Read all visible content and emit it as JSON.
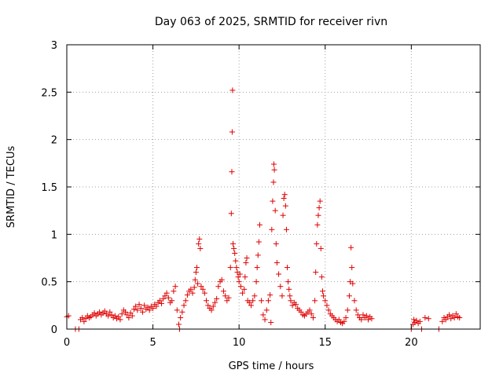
{
  "chart_data": {
    "type": "scatter",
    "title": "Day 063 of 2025, SRMTID for receiver rivn",
    "xlabel": "GPS time / hours",
    "ylabel": "SRMTID / TECUs",
    "xlim": [
      0,
      24
    ],
    "ylim": [
      0,
      3
    ],
    "xticks": [
      0,
      5,
      10,
      15,
      20
    ],
    "yticks": [
      0,
      0.5,
      1,
      1.5,
      2,
      2.5,
      3
    ],
    "grid": true,
    "marker": "plus",
    "color": "#e00000",
    "series": [
      {
        "name": "SRMTID",
        "points": [
          [
            0.0,
            0.13
          ],
          [
            0.1,
            0.14
          ],
          [
            0.5,
            0.0
          ],
          [
            0.7,
            0.0
          ],
          [
            0.8,
            0.1
          ],
          [
            0.9,
            0.12
          ],
          [
            1.0,
            0.08
          ],
          [
            1.1,
            0.11
          ],
          [
            1.2,
            0.14
          ],
          [
            1.3,
            0.12
          ],
          [
            1.4,
            0.13
          ],
          [
            1.5,
            0.15
          ],
          [
            1.6,
            0.17
          ],
          [
            1.7,
            0.14
          ],
          [
            1.8,
            0.16
          ],
          [
            1.9,
            0.18
          ],
          [
            2.0,
            0.15
          ],
          [
            2.1,
            0.17
          ],
          [
            2.2,
            0.19
          ],
          [
            2.3,
            0.16
          ],
          [
            2.4,
            0.14
          ],
          [
            2.5,
            0.18
          ],
          [
            2.6,
            0.15
          ],
          [
            2.7,
            0.12
          ],
          [
            2.8,
            0.14
          ],
          [
            2.9,
            0.11
          ],
          [
            3.0,
            0.13
          ],
          [
            3.1,
            0.1
          ],
          [
            3.2,
            0.16
          ],
          [
            3.3,
            0.2
          ],
          [
            3.4,
            0.18
          ],
          [
            3.5,
            0.15
          ],
          [
            3.6,
            0.12
          ],
          [
            3.7,
            0.17
          ],
          [
            3.8,
            0.14
          ],
          [
            3.9,
            0.21
          ],
          [
            4.0,
            0.24
          ],
          [
            4.1,
            0.2
          ],
          [
            4.2,
            0.26
          ],
          [
            4.3,
            0.22
          ],
          [
            4.4,
            0.18
          ],
          [
            4.5,
            0.25
          ],
          [
            4.6,
            0.21
          ],
          [
            4.7,
            0.23
          ],
          [
            4.8,
            0.2
          ],
          [
            4.9,
            0.24
          ],
          [
            5.0,
            0.22
          ],
          [
            5.1,
            0.26
          ],
          [
            5.2,
            0.24
          ],
          [
            5.3,
            0.28
          ],
          [
            5.4,
            0.3
          ],
          [
            5.5,
            0.27
          ],
          [
            5.6,
            0.32
          ],
          [
            5.7,
            0.35
          ],
          [
            5.8,
            0.38
          ],
          [
            5.9,
            0.33
          ],
          [
            6.0,
            0.28
          ],
          [
            6.1,
            0.3
          ],
          [
            6.2,
            0.4
          ],
          [
            6.3,
            0.45
          ],
          [
            6.4,
            0.2
          ],
          [
            6.5,
            0.05
          ],
          [
            6.55,
            0.0
          ],
          [
            6.6,
            0.12
          ],
          [
            6.7,
            0.18
          ],
          [
            6.8,
            0.25
          ],
          [
            6.9,
            0.3
          ],
          [
            7.0,
            0.36
          ],
          [
            7.1,
            0.4
          ],
          [
            7.2,
            0.42
          ],
          [
            7.3,
            0.38
          ],
          [
            7.4,
            0.44
          ],
          [
            7.45,
            0.52
          ],
          [
            7.5,
            0.6
          ],
          [
            7.55,
            0.65
          ],
          [
            7.6,
            0.48
          ],
          [
            7.65,
            0.9
          ],
          [
            7.7,
            0.95
          ],
          [
            7.75,
            0.85
          ],
          [
            7.8,
            0.45
          ],
          [
            7.9,
            0.42
          ],
          [
            8.0,
            0.38
          ],
          [
            8.1,
            0.3
          ],
          [
            8.2,
            0.25
          ],
          [
            8.3,
            0.22
          ],
          [
            8.4,
            0.2
          ],
          [
            8.5,
            0.24
          ],
          [
            8.6,
            0.28
          ],
          [
            8.7,
            0.32
          ],
          [
            8.8,
            0.45
          ],
          [
            8.9,
            0.5
          ],
          [
            9.0,
            0.52
          ],
          [
            9.1,
            0.4
          ],
          [
            9.2,
            0.35
          ],
          [
            9.3,
            0.3
          ],
          [
            9.4,
            0.33
          ],
          [
            9.5,
            0.65
          ],
          [
            9.55,
            1.22
          ],
          [
            9.58,
            1.66
          ],
          [
            9.6,
            2.08
          ],
          [
            9.62,
            2.52
          ],
          [
            9.65,
            0.9
          ],
          [
            9.7,
            0.85
          ],
          [
            9.75,
            0.8
          ],
          [
            9.8,
            0.72
          ],
          [
            9.85,
            0.65
          ],
          [
            9.9,
            0.6
          ],
          [
            9.95,
            0.55
          ],
          [
            10.0,
            0.5
          ],
          [
            10.05,
            0.58
          ],
          [
            10.1,
            0.45
          ],
          [
            10.2,
            0.38
          ],
          [
            10.3,
            0.42
          ],
          [
            10.35,
            0.55
          ],
          [
            10.4,
            0.7
          ],
          [
            10.45,
            0.75
          ],
          [
            10.5,
            0.3
          ],
          [
            10.6,
            0.28
          ],
          [
            10.7,
            0.25
          ],
          [
            10.8,
            0.3
          ],
          [
            10.9,
            0.35
          ],
          [
            11.0,
            0.5
          ],
          [
            11.05,
            0.65
          ],
          [
            11.1,
            0.78
          ],
          [
            11.15,
            0.92
          ],
          [
            11.2,
            1.1
          ],
          [
            11.3,
            0.3
          ],
          [
            11.4,
            0.15
          ],
          [
            11.5,
            0.1
          ],
          [
            11.6,
            0.2
          ],
          [
            11.7,
            0.3
          ],
          [
            11.8,
            0.36
          ],
          [
            11.85,
            0.07
          ],
          [
            11.9,
            1.05
          ],
          [
            11.95,
            1.35
          ],
          [
            12.0,
            1.55
          ],
          [
            12.02,
            1.74
          ],
          [
            12.05,
            1.68
          ],
          [
            12.1,
            1.25
          ],
          [
            12.15,
            0.9
          ],
          [
            12.2,
            0.7
          ],
          [
            12.3,
            0.58
          ],
          [
            12.4,
            0.45
          ],
          [
            12.5,
            0.35
          ],
          [
            12.55,
            1.2
          ],
          [
            12.6,
            1.38
          ],
          [
            12.65,
            1.42
          ],
          [
            12.7,
            1.3
          ],
          [
            12.75,
            1.05
          ],
          [
            12.8,
            0.65
          ],
          [
            12.85,
            0.5
          ],
          [
            12.9,
            0.42
          ],
          [
            12.95,
            0.35
          ],
          [
            13.0,
            0.3
          ],
          [
            13.1,
            0.25
          ],
          [
            13.2,
            0.28
          ],
          [
            13.3,
            0.26
          ],
          [
            13.4,
            0.22
          ],
          [
            13.5,
            0.2
          ],
          [
            13.6,
            0.18
          ],
          [
            13.7,
            0.15
          ],
          [
            13.8,
            0.14
          ],
          [
            13.9,
            0.16
          ],
          [
            14.0,
            0.18
          ],
          [
            14.1,
            0.2
          ],
          [
            14.2,
            0.16
          ],
          [
            14.3,
            0.12
          ],
          [
            14.4,
            0.3
          ],
          [
            14.45,
            0.6
          ],
          [
            14.5,
            0.9
          ],
          [
            14.55,
            1.1
          ],
          [
            14.6,
            1.2
          ],
          [
            14.65,
            1.28
          ],
          [
            14.7,
            1.35
          ],
          [
            14.75,
            0.85
          ],
          [
            14.8,
            0.55
          ],
          [
            14.85,
            0.4
          ],
          [
            14.9,
            0.35
          ],
          [
            15.0,
            0.3
          ],
          [
            15.1,
            0.25
          ],
          [
            15.2,
            0.2
          ],
          [
            15.3,
            0.16
          ],
          [
            15.4,
            0.14
          ],
          [
            15.5,
            0.12
          ],
          [
            15.6,
            0.1
          ],
          [
            15.7,
            0.08
          ],
          [
            15.8,
            0.1
          ],
          [
            15.9,
            0.07
          ],
          [
            16.0,
            0.06
          ],
          [
            16.1,
            0.08
          ],
          [
            16.2,
            0.12
          ],
          [
            16.3,
            0.2
          ],
          [
            16.4,
            0.35
          ],
          [
            16.45,
            0.5
          ],
          [
            16.5,
            0.86
          ],
          [
            16.55,
            0.65
          ],
          [
            16.6,
            0.48
          ],
          [
            16.7,
            0.3
          ],
          [
            16.8,
            0.2
          ],
          [
            16.9,
            0.15
          ],
          [
            17.0,
            0.12
          ],
          [
            17.1,
            0.1
          ],
          [
            17.2,
            0.15
          ],
          [
            17.3,
            0.12
          ],
          [
            17.4,
            0.14
          ],
          [
            17.5,
            0.1
          ],
          [
            17.6,
            0.13
          ],
          [
            17.7,
            0.11
          ],
          [
            20.0,
            0.0
          ],
          [
            20.1,
            0.05
          ],
          [
            20.15,
            0.1
          ],
          [
            20.2,
            0.07
          ],
          [
            20.3,
            0.09
          ],
          [
            20.4,
            0.06
          ],
          [
            20.5,
            0.08
          ],
          [
            20.6,
            0.0
          ],
          [
            20.8,
            0.12
          ],
          [
            21.0,
            0.11
          ],
          [
            21.6,
            0.0
          ],
          [
            21.8,
            0.08
          ],
          [
            21.9,
            0.12
          ],
          [
            22.0,
            0.1
          ],
          [
            22.1,
            0.13
          ],
          [
            22.2,
            0.15
          ],
          [
            22.3,
            0.11
          ],
          [
            22.4,
            0.14
          ],
          [
            22.5,
            0.12
          ],
          [
            22.6,
            0.16
          ],
          [
            22.7,
            0.13
          ],
          [
            22.8,
            0.12
          ]
        ]
      }
    ]
  }
}
